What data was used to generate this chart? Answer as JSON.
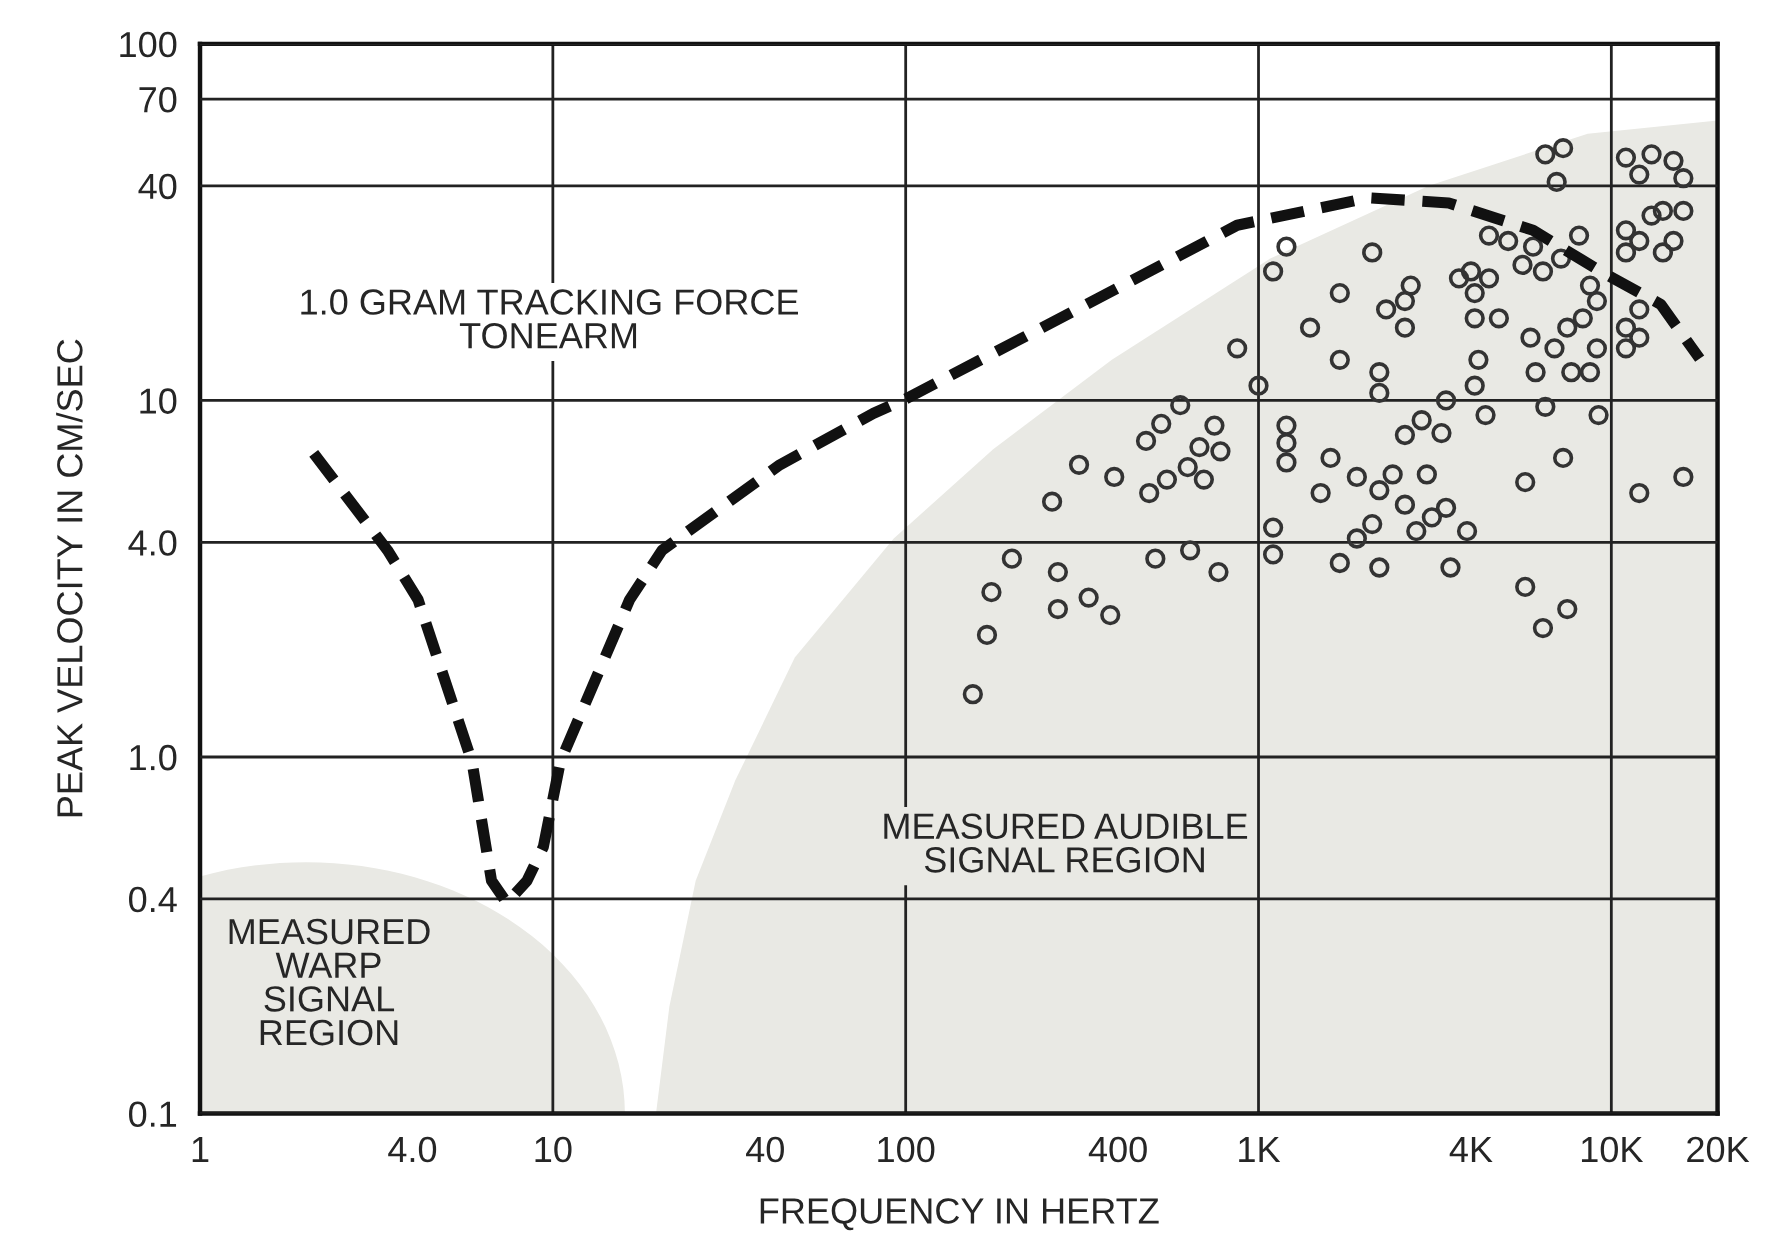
{
  "chart_data": {
    "type": "scatter",
    "xlabel": "FREQUENCY IN HERTZ",
    "ylabel": "PEAK VELOCITY IN CM/SEC",
    "log": "xy",
    "grid": "y",
    "legend": false,
    "tick_labels": "xy",
    "xlim": [
      1,
      20000
    ],
    "ylim": [
      0.1,
      100
    ],
    "xticks": [
      1,
      {
        "value": 4,
        "label": "4.0"
      },
      10,
      40,
      100,
      400,
      {
        "value": 1000,
        "label": "1K"
      },
      {
        "value": 4000,
        "label": "4K"
      },
      {
        "value": 10000,
        "label": "10K"
      },
      {
        "value": 20000,
        "label": "20K"
      }
    ],
    "yticks": [
      0.1,
      0.4,
      {
        "value": 1,
        "label": "1.0"
      },
      {
        "value": 4,
        "label": "4.0"
      },
      10,
      40,
      70,
      100
    ],
    "ref_lines": [
      {
        "axis": "x",
        "value": 10,
        "color": "#222222"
      },
      {
        "axis": "x",
        "value": 100,
        "color": "#222222"
      },
      {
        "axis": "x",
        "value": 1000,
        "color": "#222222"
      },
      {
        "axis": "x",
        "value": 10000,
        "color": "#222222"
      }
    ],
    "annotations": [
      "1.0 GRAM TRACKING FORCE\nTONEARM",
      "MEASURED\nWARP\nSIGNAL\nREGION",
      "MEASURED AUDIBLE\nSIGNAL REGION"
    ],
    "series": [
      {
        "type": "area",
        "color": "#e9e9e4",
        "x": [
          19.6,
          21.4,
          25.4,
          32.9,
          48.5,
          92.5,
          177,
          384,
          1080,
          3040,
          8570,
          20000
        ],
        "values": [
          0.1,
          0.2,
          0.45,
          0.86,
          1.9,
          4.1,
          7.3,
          13,
          25,
          40,
          56,
          61
        ]
      },
      {
        "type": "line",
        "color": "#111111",
        "line_style": "dashed",
        "marker": "none",
        "x": [
          2.1,
          3.4,
          4.15,
          5.9,
          6.7,
          7.4,
          8.45,
          9.4,
          10.5,
          16.5,
          20.4,
          44,
          81,
          100,
          296,
          870,
          2050,
          3460,
          6000,
          9350,
          13800,
          17800
        ],
        "values": [
          7.1,
          3.8,
          2.76,
          0.97,
          0.45,
          0.39,
          0.45,
          0.56,
          0.97,
          2.76,
          3.8,
          6.6,
          9.2,
          10.1,
          17.7,
          31,
          37,
          35.8,
          30,
          23,
          18.6,
          13.1
        ]
      },
      {
        "color": "#333333",
        "marker": "circle",
        "x": [
          6500,
          7300,
          7000,
          11000,
          12000,
          13000,
          15000,
          16000,
          13000,
          14000,
          16000,
          11000,
          11000,
          12000,
          14000,
          15000,
          8100,
          4500,
          5100,
          6000,
          7200,
          5600,
          6400,
          8700,
          9100,
          8300,
          7500,
          6900,
          9100,
          7700,
          8700,
          11000,
          11000,
          12000,
          12000,
          5900,
          6100,
          6500,
          9200,
          7300,
          5700,
          12000,
          16000,
          4000,
          3700,
          4500,
          4100,
          4100,
          4800,
          4200,
          4100,
          4400,
          3400,
          2900,
          2600,
          3300,
          3000,
          2400,
          1900,
          2200,
          1500,
          1600,
          1200,
          1200,
          1200,
          1100,
          1100,
          1700,
          1900,
          2100,
          2200,
          2600,
          2800,
          3100,
          3400,
          3900,
          3500,
          5700,
          7500,
          6400,
          2100,
          2700,
          2600,
          2300,
          2600,
          1700,
          1400,
          1700,
          2200,
          2200,
          1200,
          1100,
          870,
          1000,
          600,
          530,
          480,
          750,
          680,
          780,
          630,
          550,
          490,
          700,
          310,
          390,
          260,
          200,
          510,
          640,
          770,
          175,
          270,
          270,
          330,
          380,
          170,
          155
        ],
        "values": [
          49,
          51,
          41,
          48,
          43,
          49,
          47,
          42,
          33,
          34,
          34,
          30,
          26,
          28,
          26,
          28,
          29,
          29,
          28,
          27,
          25,
          24,
          23,
          21,
          19,
          17,
          16,
          14,
          14,
          12,
          12,
          16,
          14,
          15,
          18,
          15,
          12,
          9.6,
          9.1,
          6.9,
          5.9,
          5.5,
          6.1,
          23,
          22,
          22,
          20,
          17,
          17,
          13,
          11,
          9.1,
          10,
          8.8,
          8.0,
          8.1,
          6.2,
          6.2,
          6.1,
          5.6,
          5.5,
          6.9,
          8.5,
          7.6,
          6.7,
          4.4,
          3.7,
          3.5,
          4.1,
          4.5,
          3.4,
          5.1,
          4.3,
          4.7,
          5.0,
          4.3,
          3.4,
          3.0,
          2.6,
          2.3,
          26,
          21,
          19,
          18,
          16,
          20,
          16,
          13,
          12,
          10.5,
          27,
          23,
          14,
          11,
          9.7,
          8.6,
          7.7,
          8.5,
          7.4,
          7.2,
          6.5,
          6.0,
          5.5,
          6.0,
          6.6,
          6.1,
          5.2,
          3.6,
          3.6,
          3.8,
          3.3,
          2.9,
          3.3,
          2.6,
          2.8,
          2.5,
          2.2,
          1.5
        ]
      }
    ]
  }
}
